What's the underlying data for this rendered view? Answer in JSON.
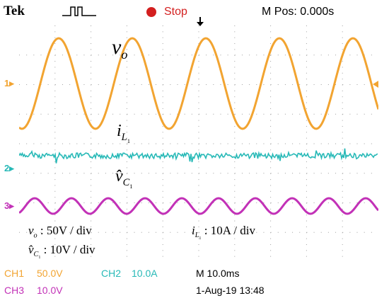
{
  "header": {
    "brand": "Tek",
    "run_state": "Stop",
    "m_pos": "M Pos: 0.000s",
    "trigger_icon": "pulse-trigger-icon"
  },
  "channels": {
    "ch1_marker": "1",
    "ch2_marker": "2",
    "ch3_marker": "3"
  },
  "annotations": {
    "vo_label": "v",
    "vo_sub": "o",
    "il1_label": "i",
    "il1_sub": "L",
    "il1_subsub": "1",
    "vc1_label": "v̂",
    "vc1_sub": "C",
    "vc1_subsub": "1",
    "scale_vo": ": 50V / div",
    "scale_il1": ": 10A / div",
    "scale_vc1": ": 10V / div"
  },
  "status": {
    "ch1": "CH1",
    "ch1_scale": "50.0V",
    "ch2": "CH2",
    "ch2_scale": "10.0A",
    "ch3": "CH3",
    "ch3_scale": "10.0V",
    "timebase": "M 10.0ms",
    "date_time": "1-Aug-19 13:48"
  },
  "colors": {
    "ch1": "#f2a431",
    "ch2": "#27b9b7",
    "ch3": "#c231b7",
    "stop": "#d31f1f",
    "grid": "#9a9a9a"
  }
}
